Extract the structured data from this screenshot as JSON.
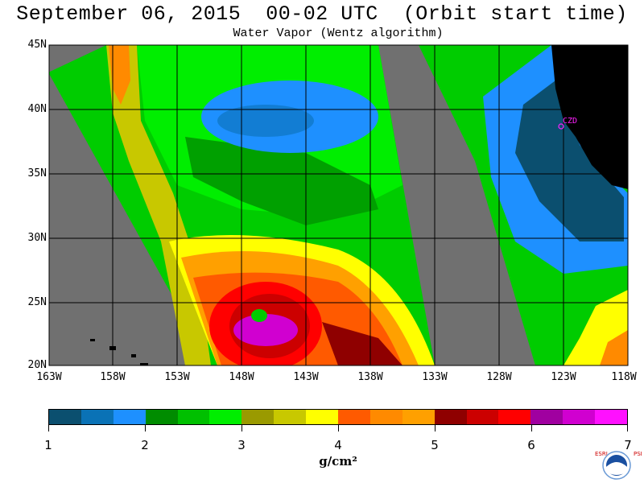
{
  "title": "September 06, 2015  00-02 UTC  (Orbit start time)",
  "subtitle": "Water Vapor (Wentz algorithm)",
  "lat_labels": [
    "45N",
    "40N",
    "35N",
    "30N",
    "25N",
    "20N"
  ],
  "lon_labels": [
    "163W",
    "158W",
    "153W",
    "148W",
    "143W",
    "138W",
    "133W",
    "128W",
    "123W",
    "118W"
  ],
  "city_label": "CZD",
  "colorbar": {
    "unit": "g/cm²",
    "tick_labels": [
      "1",
      "2",
      "3",
      "4",
      "5",
      "6",
      "7"
    ],
    "colors": [
      "#0b4f6f",
      "#0a72b6",
      "#1e90ff",
      "#008c00",
      "#00c000",
      "#00ee00",
      "#9a9a00",
      "#c8c800",
      "#ffff00",
      "#ff5a00",
      "#ff8a00",
      "#ffa000",
      "#8f0000",
      "#cc0000",
      "#ff0000",
      "#a000a0",
      "#d000d0",
      "#ff10ff"
    ]
  },
  "logo": {
    "left_text": "ESRL",
    "right_text": "PSD",
    "center_text": "NOAA"
  }
}
